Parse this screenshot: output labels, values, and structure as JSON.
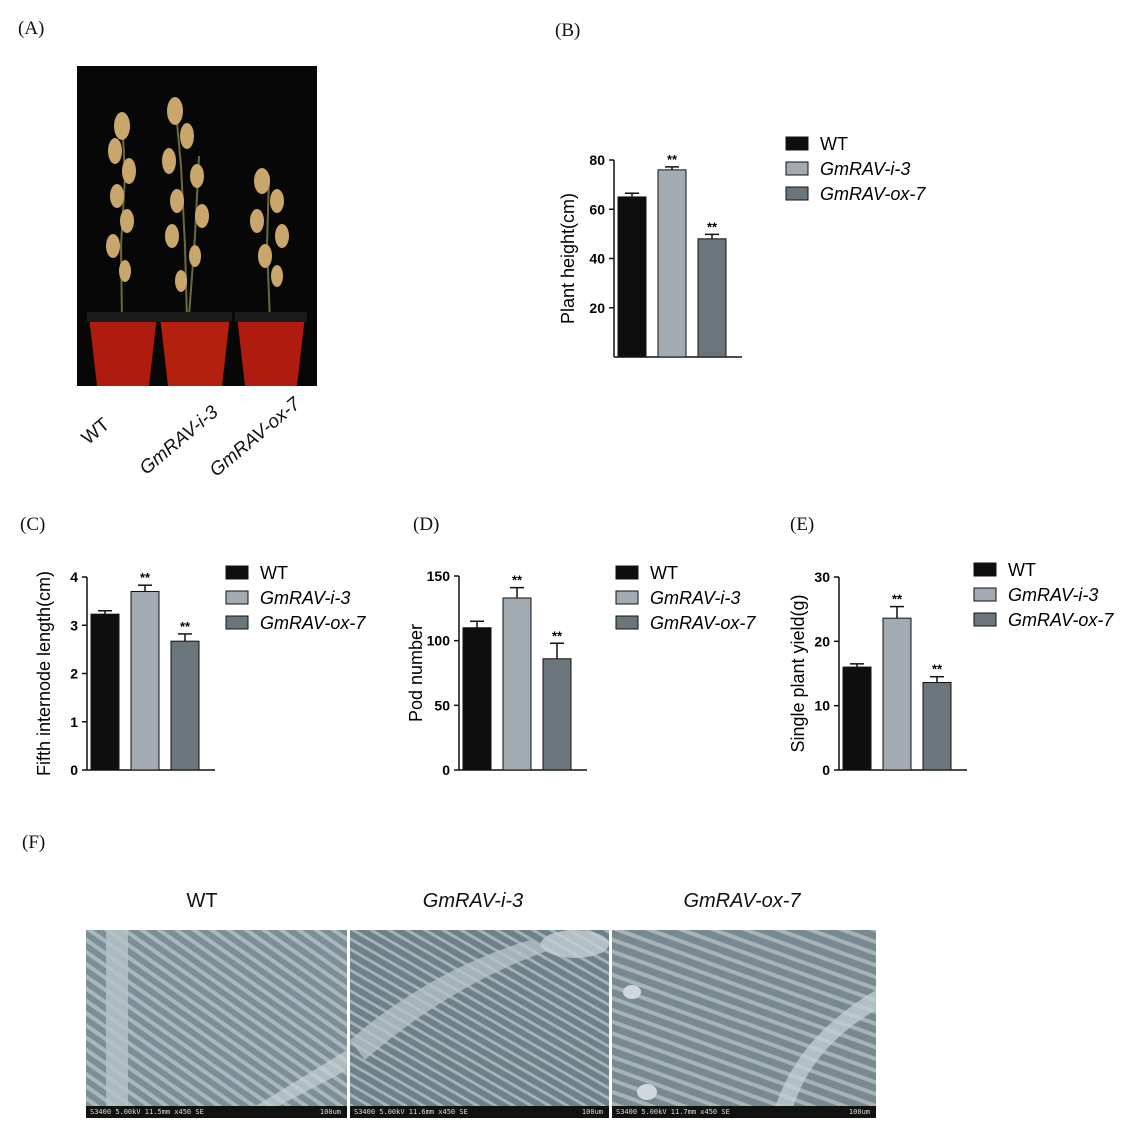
{
  "panels": {
    "A": "(A)",
    "B": "(B)",
    "C": "(C)",
    "D": "(D)",
    "E": "(E)",
    "F": "(F)"
  },
  "genotypes": [
    "WT",
    "GmRAV-i-3",
    "GmRAV-ox-7"
  ],
  "colors": {
    "WT": "#0e0e0e",
    "GmRAV-i-3": "#a3abb2",
    "GmRAV-ox-7": "#6b757c"
  },
  "sem": {
    "titles": [
      "WT",
      "GmRAV-i-3",
      "GmRAV-ox-7"
    ],
    "footers": [
      {
        "info": "S3400 5.00kV 11.5mm x450 SE",
        "scale": "100um"
      },
      {
        "info": "S3400 5.00kV 11.6mm x450 SE",
        "scale": "100um"
      },
      {
        "info": "S3400 5.00kV 11.7mm x450 SE",
        "scale": "100um"
      }
    ]
  },
  "chart_data": [
    {
      "panel": "B",
      "type": "bar",
      "categories": [
        "WT",
        "GmRAV-i-3",
        "GmRAV-ox-7"
      ],
      "values": [
        65,
        76,
        48
      ],
      "errors": [
        1.5,
        1.2,
        1.8
      ],
      "significance": [
        "",
        "**",
        "**"
      ],
      "ylabel": "Plant height(cm)",
      "ylim": [
        0,
        80
      ],
      "yticks": [
        20,
        40,
        60,
        80
      ],
      "legend": [
        "WT",
        "GmRAV-i-3",
        "GmRAV-ox-7"
      ],
      "legend_position": "right"
    },
    {
      "panel": "C",
      "type": "bar",
      "categories": [
        "WT",
        "GmRAV-i-3",
        "GmRAV-ox-7"
      ],
      "values": [
        3.23,
        3.7,
        2.67
      ],
      "errors": [
        0.07,
        0.13,
        0.15
      ],
      "significance": [
        "",
        "**",
        "**"
      ],
      "ylabel": "Fifth internode length(cm)",
      "ylim": [
        0,
        4
      ],
      "yticks": [
        0,
        1,
        2,
        3,
        4
      ],
      "legend": [
        "WT",
        "GmRAV-i-3",
        "GmRAV-ox-7"
      ],
      "legend_position": "right"
    },
    {
      "panel": "D",
      "type": "bar",
      "categories": [
        "WT",
        "GmRAV-i-3",
        "GmRAV-ox-7"
      ],
      "values": [
        110,
        133,
        86
      ],
      "errors": [
        5,
        8,
        12
      ],
      "significance": [
        "",
        "**",
        "**"
      ],
      "ylabel": "Pod number",
      "ylim": [
        0,
        150
      ],
      "yticks": [
        0,
        50,
        100,
        150
      ],
      "legend": [
        "WT",
        "GmRAV-i-3",
        "GmRAV-ox-7"
      ],
      "legend_position": "right"
    },
    {
      "panel": "E",
      "type": "bar",
      "categories": [
        "WT",
        "GmRAV-i-3",
        "GmRAV-ox-7"
      ],
      "values": [
        16,
        23.6,
        13.6
      ],
      "errors": [
        0.5,
        1.8,
        0.9
      ],
      "significance": [
        "",
        "**",
        "**"
      ],
      "ylabel": "Single plant yield(g)",
      "ylim": [
        0,
        30
      ],
      "yticks": [
        0,
        10,
        20,
        30
      ],
      "legend": [
        "WT",
        "GmRAV-i-3",
        "GmRAV-ox-7"
      ],
      "legend_position": "right"
    }
  ]
}
